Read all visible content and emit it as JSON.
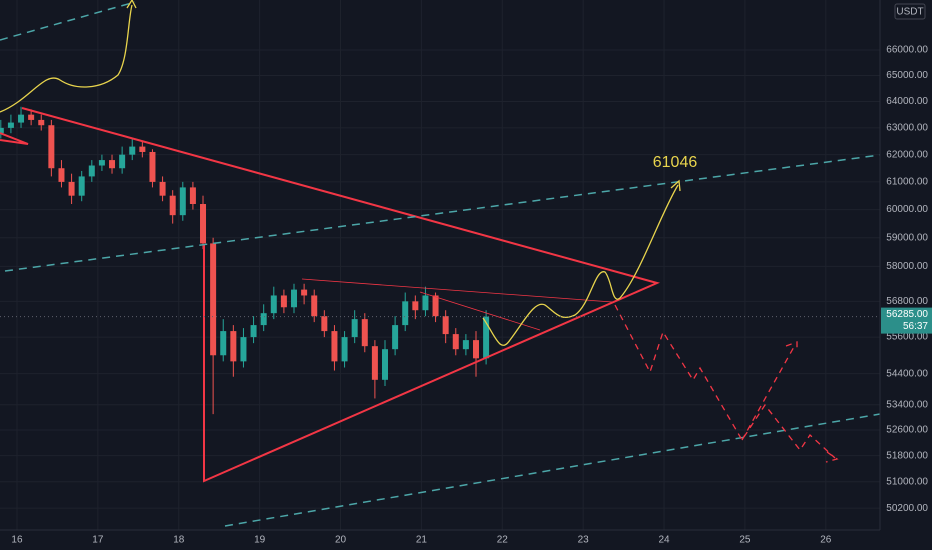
{
  "chart_data": {
    "type": "candlestick",
    "annotation": "61046",
    "currency": "USDT",
    "countdown": "56:37",
    "last_price": {
      "value": 56285,
      "label": "56285.00"
    },
    "log_scale": true,
    "grid": true,
    "up_color": "#26a69a",
    "down_color": "#ef5350",
    "xlim": [
      15.79,
      26.67
    ],
    "xticks": [
      16,
      17,
      18,
      19,
      20,
      21,
      22,
      23,
      24,
      25,
      26
    ],
    "ylim": [
      49550,
      68000
    ],
    "yticks": [
      {
        "value": 66000,
        "label": "66000.00"
      },
      {
        "value": 65000,
        "label": "65000.00"
      },
      {
        "value": 64000,
        "label": "64000.00"
      },
      {
        "value": 63000,
        "label": "63000.00"
      },
      {
        "value": 62000,
        "label": "62000.00"
      },
      {
        "value": 61000,
        "label": "61000.00"
      },
      {
        "value": 60000,
        "label": "60000.00"
      },
      {
        "value": 59000,
        "label": "59000.00"
      },
      {
        "value": 58000,
        "label": "58000.00"
      },
      {
        "value": 56800,
        "label": "56800.00"
      },
      {
        "value": 55600,
        "label": "55600.00"
      },
      {
        "value": 54400,
        "label": "54400.00"
      },
      {
        "value": 53400,
        "label": "53400.00"
      },
      {
        "value": 52600,
        "label": "52600.00"
      },
      {
        "value": 51800,
        "label": "51800.00"
      },
      {
        "value": 51000,
        "label": "51000.00"
      },
      {
        "value": 50200,
        "label": "50200.00"
      }
    ],
    "x": [
      15.8,
      15.925,
      16.05,
      16.175,
      16.3,
      16.425,
      16.55,
      16.675,
      16.8,
      16.925,
      17.05,
      17.175,
      17.3,
      17.425,
      17.55,
      17.675,
      17.8,
      17.925,
      18.05,
      18.175,
      18.3,
      18.425,
      18.55,
      18.675,
      18.8,
      18.925,
      19.05,
      19.175,
      19.3,
      19.425,
      19.55,
      19.675,
      19.8,
      19.925,
      20.05,
      20.175,
      20.3,
      20.425,
      20.55,
      20.675,
      20.8,
      20.925,
      21.05,
      21.175,
      21.3,
      21.425,
      21.55,
      21.675,
      21.8
    ],
    "open": [
      62800,
      63000,
      63200,
      63500,
      63300,
      63100,
      61500,
      61000,
      60500,
      61200,
      61600,
      61800,
      61500,
      62000,
      62300,
      62100,
      61000,
      60500,
      59800,
      60800,
      60200,
      58800,
      55000,
      55800,
      54800,
      55600,
      56000,
      56400,
      57000,
      56600,
      57200,
      57000,
      56300,
      55800,
      54800,
      55600,
      56200,
      55300,
      54200,
      55200,
      56000,
      56800,
      56500,
      57000,
      56300,
      55700,
      55200,
      55500,
      54900
    ],
    "high": [
      63300,
      63500,
      63800,
      63700,
      63500,
      63300,
      61800,
      61300,
      61400,
      61800,
      62000,
      62000,
      62300,
      62600,
      62500,
      62200,
      61200,
      60700,
      61000,
      61000,
      60500,
      59000,
      56200,
      56000,
      55900,
      56300,
      56700,
      57300,
      57200,
      57400,
      57400,
      57200,
      56500,
      56000,
      55800,
      56500,
      56400,
      55500,
      55500,
      56300,
      57100,
      57000,
      57300,
      57100,
      56500,
      55900,
      55700,
      55800,
      56500
    ],
    "low": [
      62600,
      62800,
      63000,
      63100,
      62900,
      61200,
      60800,
      60200,
      60300,
      61000,
      61400,
      61300,
      61300,
      61800,
      61900,
      60800,
      60300,
      59500,
      59600,
      60000,
      58600,
      53100,
      54800,
      54300,
      54600,
      55400,
      55800,
      56200,
      56400,
      56400,
      56700,
      56100,
      55600,
      54500,
      54600,
      55400,
      55100,
      53600,
      54000,
      55000,
      55800,
      56200,
      56300,
      56100,
      55400,
      55000,
      55000,
      54300,
      54700
    ],
    "close": [
      63000,
      63200,
      63500,
      63300,
      63100,
      61500,
      61000,
      60500,
      61200,
      61600,
      61800,
      61500,
      62000,
      62300,
      62100,
      61000,
      60500,
      59800,
      60800,
      60200,
      58800,
      55000,
      55800,
      54800,
      55600,
      56000,
      56400,
      57000,
      56600,
      57200,
      57000,
      56300,
      55800,
      54800,
      55600,
      56200,
      55300,
      54200,
      55200,
      56000,
      56800,
      56500,
      57000,
      56300,
      55700,
      55200,
      55500,
      54900,
      56285
    ]
  }
}
